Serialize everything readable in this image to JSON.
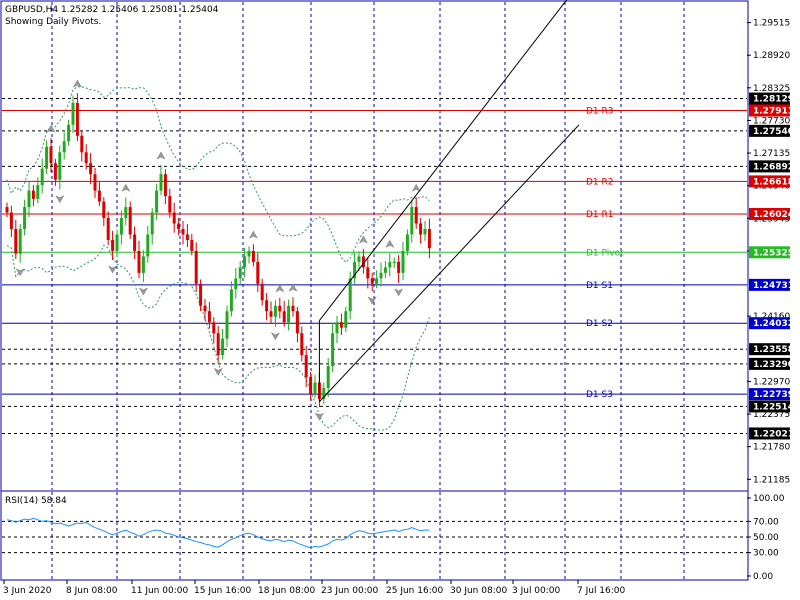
{
  "header": {
    "symbol_line": "GBPUSD,H4  1.25282 1.25406 1.25081 1.25404",
    "subtitle": "Showing Daily Pivots."
  },
  "indicator": {
    "label": "RSI(14) 58.84"
  },
  "colors": {
    "bull": "#1faa1f",
    "bear": "#dd0000",
    "pivot_green": "#22bb22",
    "resistance": "#dd0000",
    "support": "#0000aa",
    "grid": "#0000aa",
    "band": "#2a9a6a",
    "rsi": "#1e90ff",
    "channel": "#000000"
  },
  "chart_data": {
    "type": "candlestick",
    "title": "GBPUSD,H4",
    "ohlc_header": {
      "open": 1.25282,
      "high": 1.25406,
      "low": 1.25081,
      "close": 1.25404
    },
    "x_tick_labels": [
      "3 Jun 2020",
      "8 Jun 08:00",
      "11 Jun 00:00",
      "15 Jun 16:00",
      "18 Jun 08:00",
      "23 Jun 00:00",
      "25 Jun 16:00",
      "30 Jun 08:00",
      "3 Jul 00:00",
      "7 Jul 16:00"
    ],
    "y_tick_labels": [
      "1.29515",
      "1.28920",
      "1.28325",
      "1.27730",
      "1.27135",
      "1.26540",
      "1.25945",
      "1.25350",
      "1.24160",
      "1.22970",
      "1.22375",
      "1.21780",
      "1.21185"
    ],
    "ylim": [
      1.2099,
      1.2989
    ],
    "close_path": [
      1.2605,
      1.2575,
      1.253,
      1.2575,
      1.2615,
      1.2645,
      1.263,
      1.2655,
      1.2685,
      1.2725,
      1.2695,
      1.2665,
      1.2715,
      1.2735,
      1.2765,
      1.2805,
      1.2745,
      1.2715,
      1.2695,
      1.2675,
      1.2645,
      1.2625,
      1.2595,
      1.2555,
      1.2535,
      1.2565,
      1.2595,
      1.2615,
      1.2565,
      1.2535,
      1.2495,
      1.2525,
      1.2565,
      1.2605,
      1.2645,
      1.2675,
      1.2635,
      1.2605,
      1.2585,
      1.2575,
      1.2565,
      1.2555,
      1.2535,
      1.2475,
      1.2435,
      1.2425,
      1.2405,
      1.2385,
      1.2345,
      1.2375,
      1.2425,
      1.2465,
      1.2485,
      1.2505,
      1.2525,
      1.2535,
      1.2515,
      1.2475,
      1.2445,
      1.2425,
      1.2415,
      1.2435,
      1.2425,
      1.2405,
      1.2435,
      1.2425,
      1.2385,
      1.2345,
      1.2305,
      1.2275,
      1.2295,
      1.2265,
      1.2285,
      1.2325,
      1.2385,
      1.2405,
      1.2395,
      1.2425,
      1.2485,
      1.2515,
      1.2525,
      1.2505,
      1.2485,
      1.2475,
      1.2485,
      1.2495,
      1.2505,
      1.2515,
      1.2515,
      1.2495,
      1.2535,
      1.2565,
      1.2615,
      1.2585,
      1.2565,
      1.2575,
      1.254
    ],
    "pivot_levels": [
      {
        "label": "D1 R3",
        "value": 1.27911,
        "tag": "1.27911",
        "kind": "resistance"
      },
      {
        "label": "D1 R2",
        "value": 1.26618,
        "tag": "1.26618",
        "kind": "resistance"
      },
      {
        "label": "D1 R1",
        "value": 1.26024,
        "tag": "1.26024",
        "kind": "resistance"
      },
      {
        "label": "D1 Pivot",
        "value": 1.25325,
        "tag": "1.25325",
        "kind": "pivot"
      },
      {
        "label": "D1 S1",
        "value": 1.24731,
        "tag": "1.24731",
        "kind": "support"
      },
      {
        "label": "D1 S2",
        "value": 1.24032,
        "tag": "1.24032",
        "kind": "support"
      },
      {
        "label": "D1 S3",
        "value": 1.22739,
        "tag": "1.22739",
        "kind": "support"
      }
    ],
    "dashed_levels": [
      {
        "value": 1.28129,
        "tag": "1.28129"
      },
      {
        "value": 1.2754,
        "tag": "1.27540"
      },
      {
        "value": 1.26892,
        "tag": "1.26892"
      },
      {
        "value": 1.23558,
        "tag": "1.23558"
      },
      {
        "value": 1.2329,
        "tag": "1.23290"
      },
      {
        "value": 1.22514,
        "tag": "1.22514"
      },
      {
        "value": 1.22021,
        "tag": "1.22021"
      }
    ],
    "channel": {
      "from_bar": 71,
      "to_bar": 130,
      "lower_start": 1.226,
      "lower_end": 1.2765,
      "upper_start": 1.2408,
      "upper_end": 1.3022
    },
    "rsi": {
      "tick_labels": [
        "100.00",
        "70.00",
        "50.00",
        "30.00",
        "0.00"
      ],
      "ylim": [
        0,
        100
      ],
      "levels": [
        70,
        50,
        30
      ],
      "values": [
        72,
        71,
        69,
        71,
        73,
        72,
        74,
        72,
        70,
        71,
        69,
        67,
        68,
        66,
        64,
        66,
        68,
        67,
        69,
        65,
        62,
        60,
        58,
        55,
        53,
        55,
        57,
        59,
        56,
        54,
        51,
        53,
        56,
        58,
        59,
        58,
        55,
        54,
        52,
        50,
        49,
        48,
        46,
        44,
        43,
        41,
        40,
        38,
        37,
        40,
        44,
        47,
        49,
        52,
        54,
        55,
        53,
        50,
        48,
        46,
        45,
        47,
        46,
        44,
        46,
        45,
        42,
        40,
        38,
        36,
        38,
        37,
        39,
        41,
        45,
        47,
        46,
        48,
        53,
        56,
        58,
        57,
        55,
        54,
        55,
        56,
        57,
        58,
        59,
        57,
        59,
        60,
        62,
        60,
        58,
        59,
        58.84
      ]
    }
  }
}
